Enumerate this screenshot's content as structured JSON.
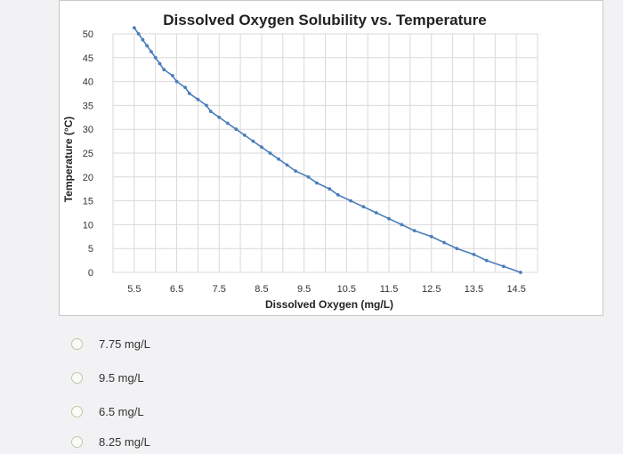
{
  "chart_data": {
    "type": "scatter",
    "title": "Dissolved Oxygen Solubility vs. Temperature",
    "xlabel": "Dissolved Oxygen (mg/L)",
    "ylabel": "Temperature (°C)",
    "xlim": [
      5,
      15
    ],
    "ylim": [
      0,
      50
    ],
    "x_ticks": [
      "5.5",
      "6.5",
      "7.5",
      "8.5",
      "9.5",
      "10.5",
      "11.5",
      "12.5",
      "13.5",
      "14.5"
    ],
    "y_ticks": [
      "0",
      "5",
      "10",
      "15",
      "20",
      "25",
      "30",
      "35",
      "40",
      "45",
      "50"
    ],
    "grid": true,
    "series": [
      {
        "color": "#4a7ebb",
        "x": [
          14.6,
          14.2,
          13.8,
          13.5,
          13.1,
          12.8,
          12.5,
          12.1,
          11.8,
          11.5,
          11.2,
          10.9,
          10.6,
          10.3,
          10.1,
          9.8,
          9.6,
          9.3,
          9.1,
          8.9,
          8.7,
          8.5,
          8.3,
          8.1,
          7.9,
          7.7,
          7.5,
          7.3,
          7.2,
          7.0,
          6.8,
          6.7,
          6.5,
          6.4,
          6.2,
          6.1,
          6.0,
          5.9,
          5.8,
          5.7,
          5.6,
          5.5
        ],
        "y": [
          0,
          1.25,
          2.5,
          3.75,
          5,
          6.25,
          7.5,
          8.75,
          10,
          11.25,
          12.5,
          13.75,
          15,
          16.25,
          17.5,
          18.75,
          20,
          21.25,
          22.5,
          23.75,
          25,
          26.25,
          27.5,
          28.75,
          30,
          31.25,
          32.5,
          33.75,
          35,
          36.25,
          37.5,
          38.75,
          40,
          41.25,
          42.5,
          43.75,
          45,
          46.25,
          47.5,
          48.75,
          50,
          51.25
        ]
      }
    ]
  },
  "options": [
    {
      "label": "7.75 mg/L"
    },
    {
      "label": "9.5 mg/L"
    },
    {
      "label": "6.5 mg/L"
    },
    {
      "label": "8.25 mg/L"
    }
  ],
  "colors": {
    "series": "#4a7ebb",
    "grid": "#d9d9d9"
  }
}
